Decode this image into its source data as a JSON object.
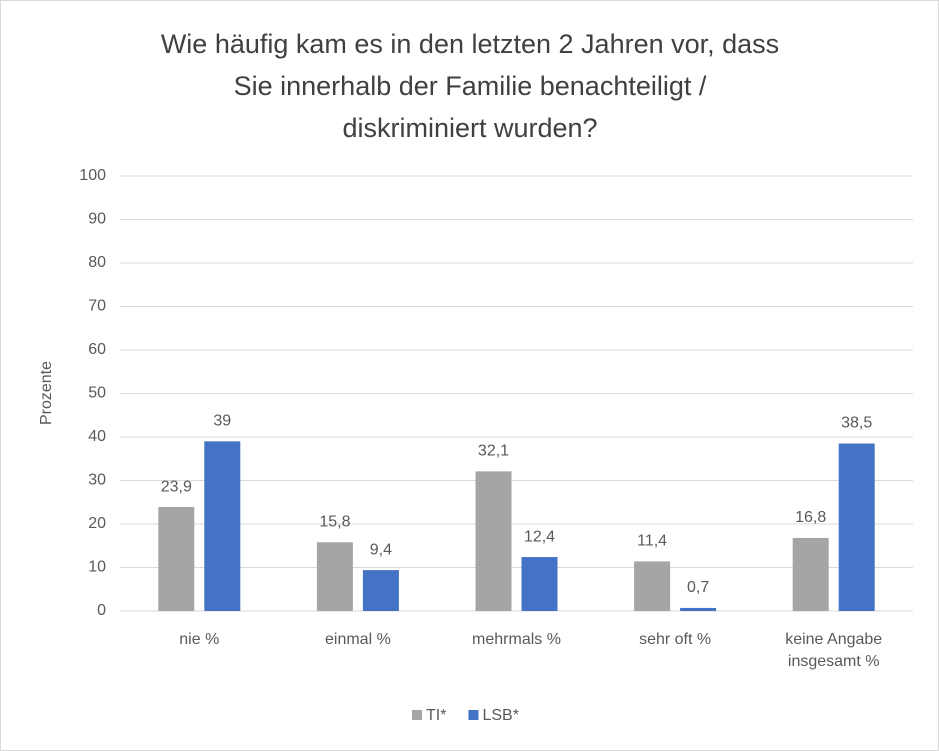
{
  "chart_data": {
    "type": "bar",
    "title": [
      "Wie häufig kam es in den letzten 2 Jahren vor, dass",
      "Sie innerhalb der Familie benachteiligt /",
      "diskriminiert wurden?"
    ],
    "y_label": "Prozente",
    "categories": [
      "nie %",
      "einmal %",
      "mehrmals %",
      "sehr oft %",
      "keine Angabe insgesamt %"
    ],
    "series": [
      {
        "name": "TI*",
        "color": "#a5a5a5",
        "values": [
          23.9,
          15.8,
          32.1,
          11.4,
          16.8
        ],
        "value_labels": [
          "23,9",
          "15,8",
          "32,1",
          "11,4",
          "16,8"
        ]
      },
      {
        "name": "LSB*",
        "color": "#4472c4",
        "values": [
          39,
          9.4,
          12.4,
          0.7,
          38.5
        ],
        "value_labels": [
          "39",
          "9,4",
          "12,4",
          "0,7",
          "38,5"
        ]
      }
    ],
    "ylim": [
      0,
      100
    ],
    "yticks": [
      0,
      10,
      20,
      30,
      40,
      50,
      60,
      70,
      80,
      90,
      100
    ],
    "grid": true,
    "legend": "bottom"
  }
}
